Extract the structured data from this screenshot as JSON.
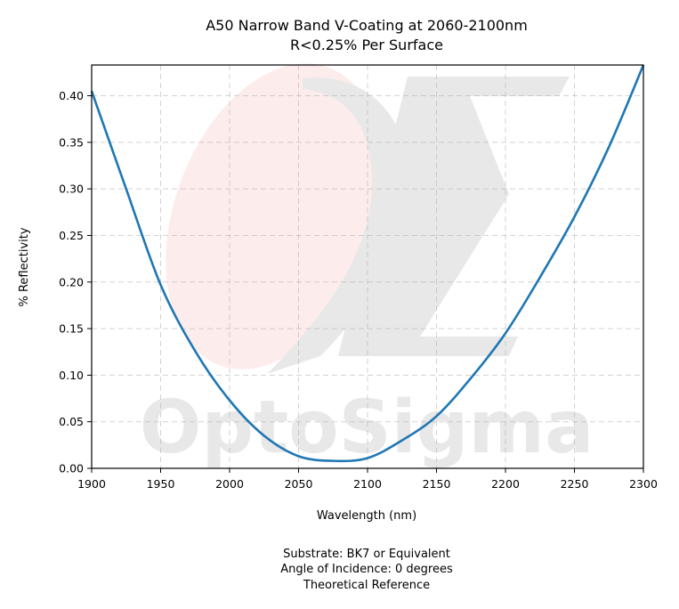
{
  "chart_data": {
    "type": "line",
    "title": "A50 Narrow Band V-Coating at 2060-2100nm",
    "subtitle": "R<0.25% Per Surface",
    "xlabel": "Wavelength (nm)",
    "ylabel": "% Reflectivity",
    "xlim": [
      1900,
      2300
    ],
    "ylim": [
      0,
      0.433
    ],
    "xticks": [
      1900,
      1950,
      2000,
      2050,
      2100,
      2150,
      2200,
      2250,
      2300
    ],
    "xtick_labels": [
      "1900",
      "1950",
      "2000",
      "2050",
      "2100",
      "2150",
      "2200",
      "2250",
      "2300"
    ],
    "yticks": [
      0.0,
      0.05,
      0.1,
      0.15,
      0.2,
      0.25,
      0.3,
      0.35,
      0.4
    ],
    "ytick_labels": [
      "0.00",
      "0.05",
      "0.10",
      "0.15",
      "0.20",
      "0.25",
      "0.30",
      "0.35",
      "0.40"
    ],
    "grid": true,
    "series": [
      {
        "color": "#1f77b4",
        "x": [
          1900,
          1925,
          1950,
          1975,
          2000,
          2025,
          2050,
          2075,
          2100,
          2125,
          2150,
          2175,
          2200,
          2225,
          2250,
          2275,
          2300
        ],
        "y": [
          0.405,
          0.3,
          0.197,
          0.126,
          0.073,
          0.035,
          0.013,
          0.008,
          0.011,
          0.03,
          0.056,
          0.097,
          0.145,
          0.205,
          0.27,
          0.345,
          0.433
        ]
      }
    ],
    "footer_lines": [
      "Substrate: BK7 or Equivalent",
      "Angle of Incidence: 0 degrees",
      "Theoretical Reference"
    ],
    "watermark": "OptoSigma"
  },
  "colors": {
    "line": "#1f77b4",
    "watermark": "#e8e8e8",
    "watermark_ellipse": "#fdecec"
  }
}
